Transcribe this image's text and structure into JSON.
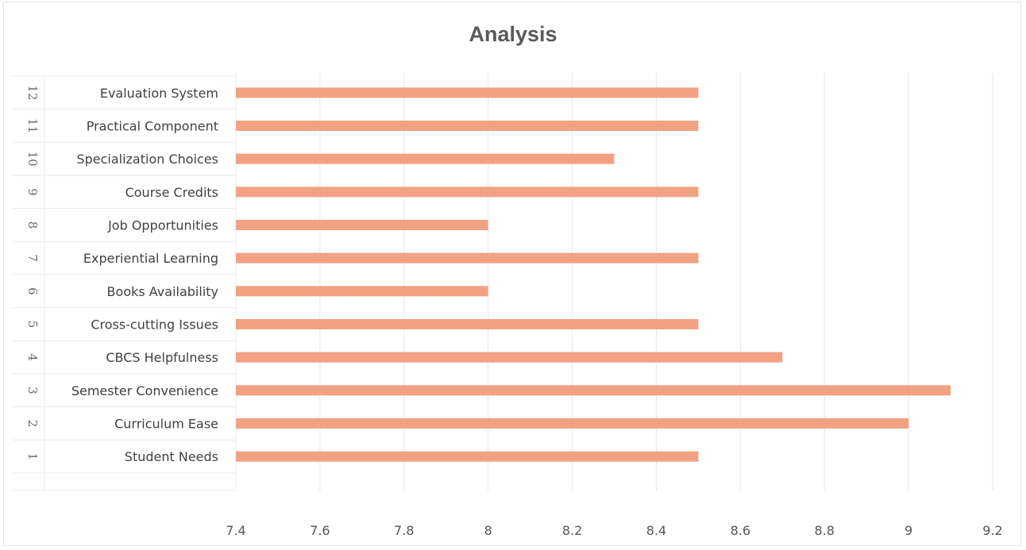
{
  "chart_data": {
    "type": "bar",
    "orientation": "horizontal",
    "title": "Analysis",
    "xlabel": "",
    "ylabel": "",
    "numbers": [
      "1",
      "2",
      "3",
      "4",
      "5",
      "6",
      "7",
      "8",
      "9",
      "10",
      "11",
      "12"
    ],
    "categories": [
      "Student Needs",
      "Curriculum Ease",
      "Semester Convenience",
      "CBCS Helpfulness",
      "Cross-cutting Issues",
      "Books Availability",
      "Experiential Learning",
      "Job Opportunities",
      "Course Credits",
      "Specialization Choices",
      "Practical Component",
      "Evaluation System"
    ],
    "values": [
      8.5,
      9.0,
      9.1,
      8.7,
      8.5,
      8.0,
      8.5,
      8.0,
      8.5,
      8.3,
      8.5,
      8.5
    ],
    "xlim": [
      7.4,
      9.2
    ],
    "xticks": [
      "7.4",
      "7.6",
      "7.8",
      "8",
      "8.2",
      "8.4",
      "8.6",
      "8.8",
      "9",
      "9.2"
    ],
    "grid": true,
    "bar_color": "#f2a283"
  }
}
